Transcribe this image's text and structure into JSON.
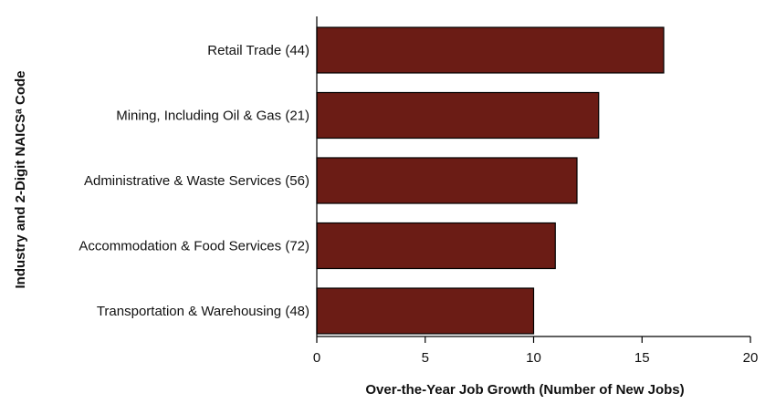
{
  "chart_data": {
    "type": "bar",
    "orientation": "horizontal",
    "categories": [
      "Retail Trade (44)",
      "Mining, Including Oil & Gas (21)",
      "Administrative & Waste Services (56)",
      "Accommodation & Food Services (72)",
      "Transportation & Warehousing (48)"
    ],
    "values": [
      16,
      13,
      12,
      11,
      10
    ],
    "xlabel": "Over-the-Year Job Growth (Number of New Jobs)",
    "ylabel": "Industry and 2-Digit NAICSᵃ Code",
    "xlim": [
      0,
      20
    ],
    "xticks": [
      0,
      5,
      10,
      15,
      20
    ],
    "grid": false,
    "legend": "none",
    "bar_color": "#6b1c15"
  }
}
